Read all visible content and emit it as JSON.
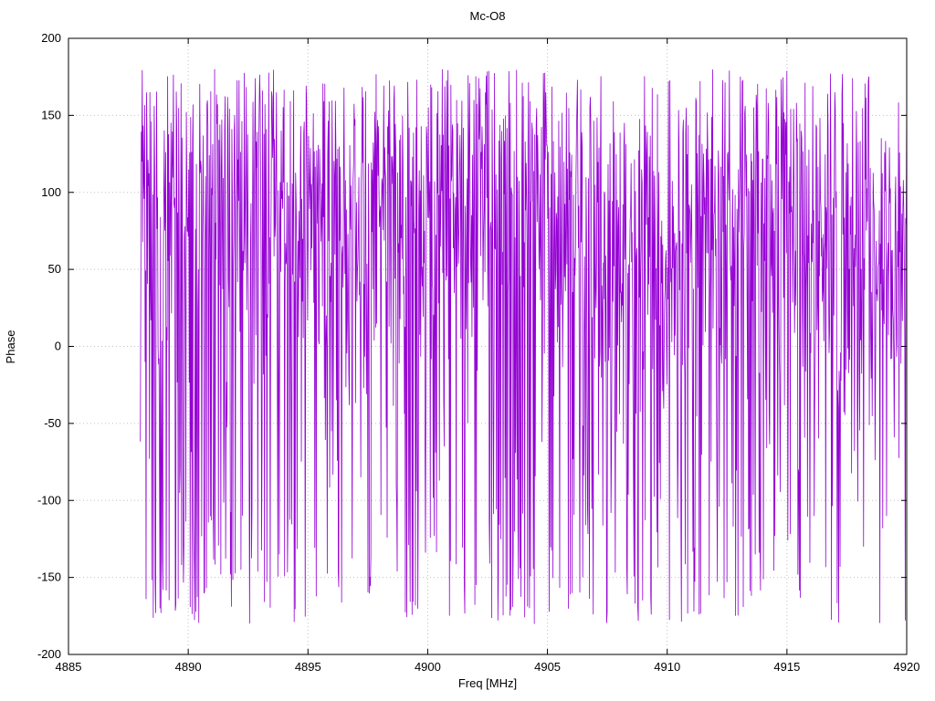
{
  "chart_data": {
    "type": "line",
    "title": "Mc-O8",
    "xlabel": "Freq [MHz]",
    "ylabel": "Phase",
    "xlim": [
      4885,
      4920
    ],
    "ylim": [
      -200,
      200
    ],
    "x_ticks": [
      4885,
      4890,
      4895,
      4900,
      4905,
      4910,
      4915,
      4920
    ],
    "y_ticks": [
      -200,
      -150,
      -100,
      -50,
      0,
      50,
      100,
      150,
      200
    ],
    "grid": "dotted",
    "legend": "none",
    "background_color": "#ffffff",
    "grid_color": "#c0c0c0",
    "axis_color": "#000000",
    "series": [
      {
        "name": "phase",
        "color": "#9400d3",
        "description": "Densely sampled wrapped interferometric phase noise; values wrap between -180 and 180 deg, biased toward the +50..+170 band with frequent full-depth excursions to -180, producing near-vertical spikes across the whole span.",
        "x_start": 4888.0,
        "x_end": 4920.0,
        "n_points": 1600,
        "y_wrap": [
          -180,
          180
        ],
        "y_bias_center": 95,
        "y_bias_mod_amp": 25,
        "y_sigma_main": 58,
        "y_sigma_tail": 150,
        "tail_prob": 0.3,
        "uniform_prob": 0.04,
        "seed": 1337
      }
    ]
  },
  "layout_note": "gnuplot-style plot, dotted grid at major ticks, mirrored inward tick marks, black border around plot area"
}
